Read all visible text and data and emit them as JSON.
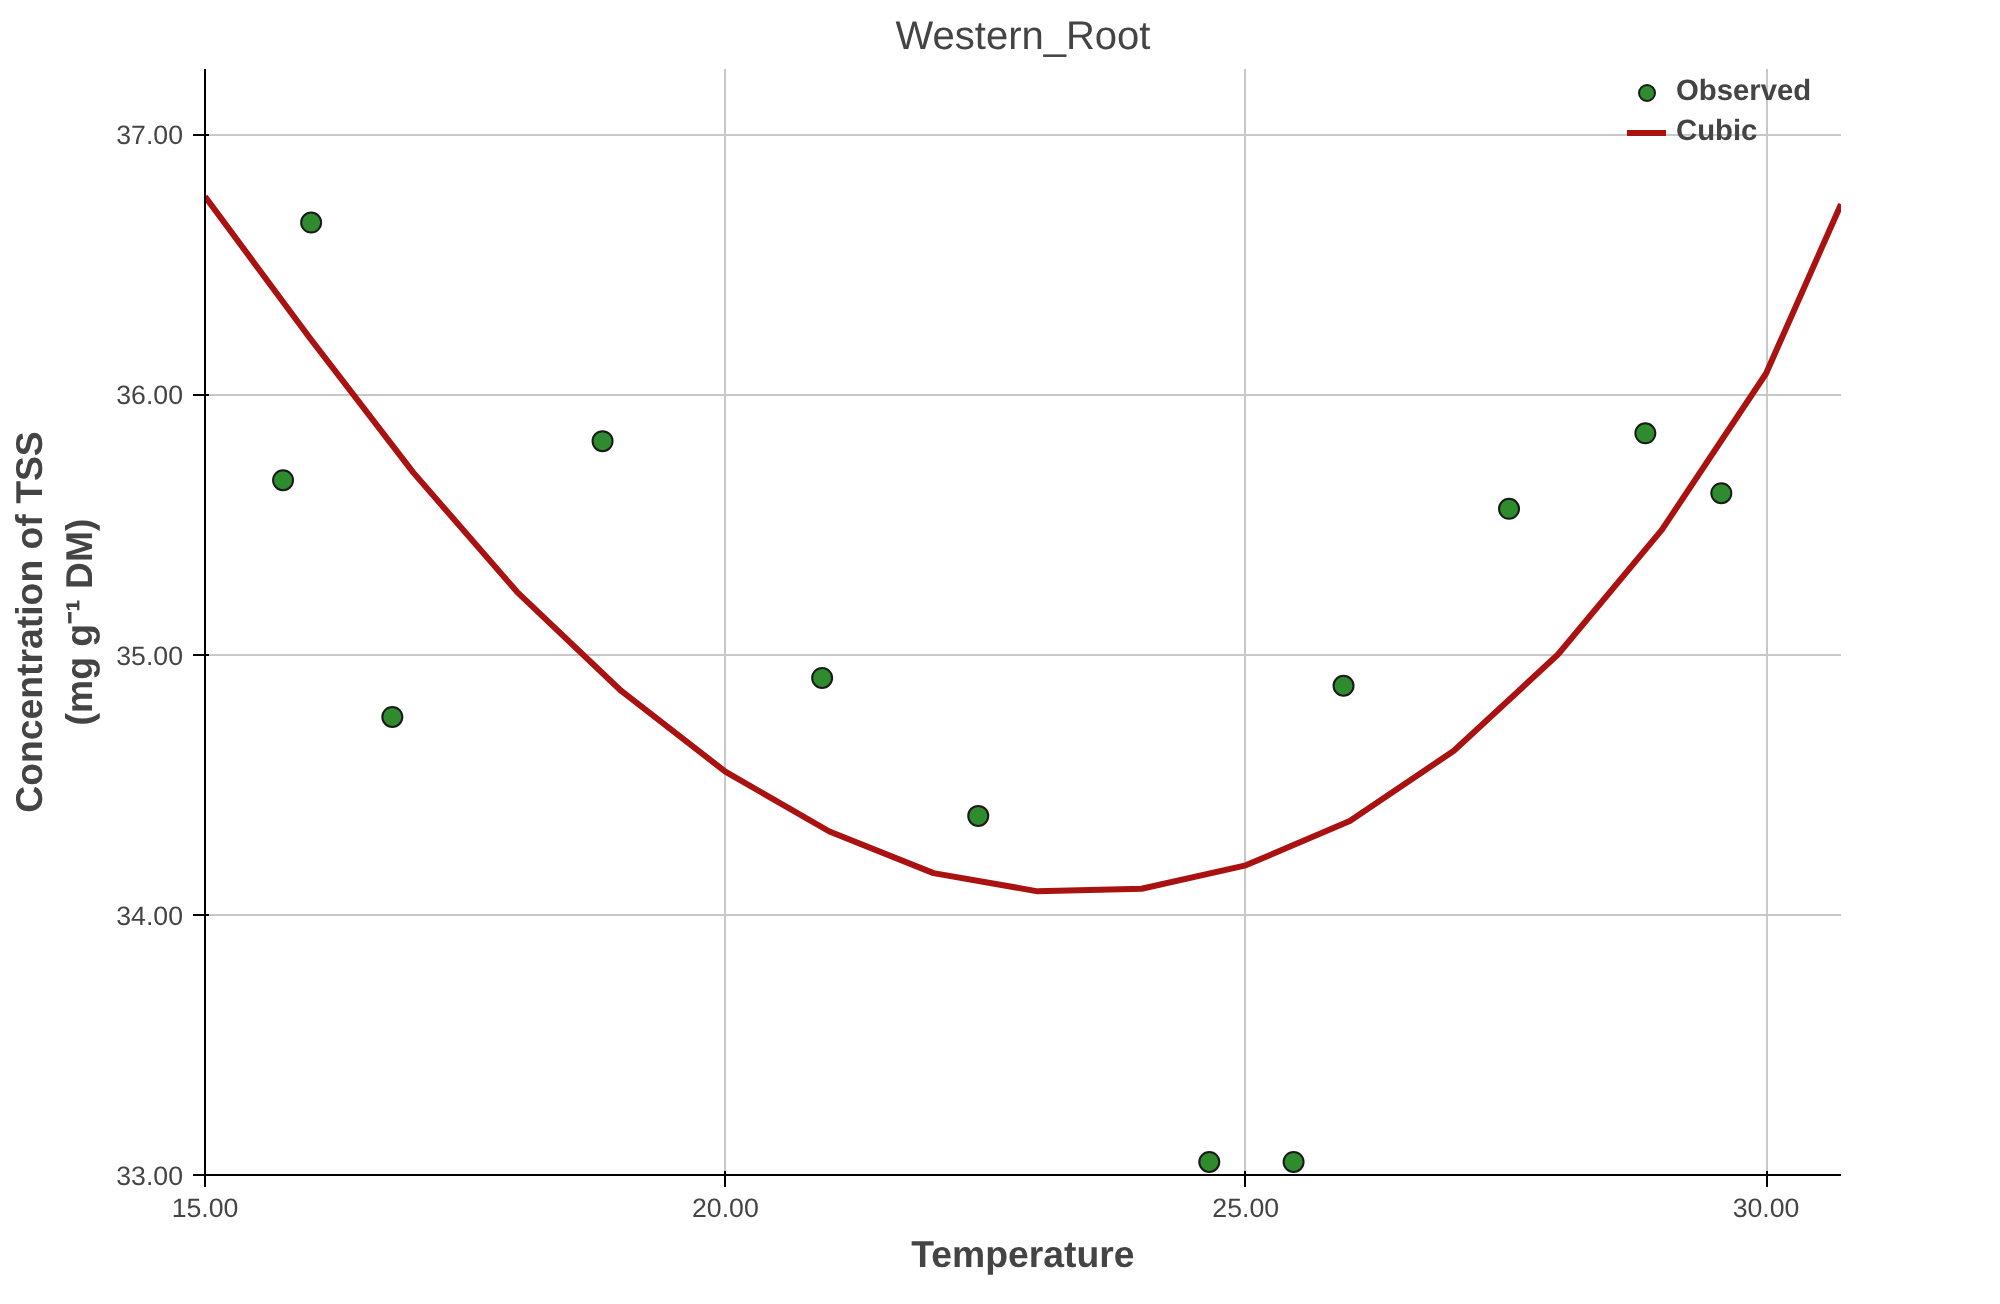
{
  "chart_data": {
    "type": "scatter",
    "title": "Western_Root",
    "xlabel": "Temperature",
    "ylabel": "Concentration of TSS\n(mg g⁻¹ DM)",
    "xlim": [
      15,
      30.72
    ],
    "ylim": [
      33,
      37.25
    ],
    "xticks": [
      {
        "value": 15,
        "label": "15.00"
      },
      {
        "value": 20,
        "label": "20.00"
      },
      {
        "value": 25,
        "label": "25.00"
      },
      {
        "value": 30,
        "label": "30.00"
      }
    ],
    "yticks": [
      {
        "value": 33,
        "label": "33.00"
      },
      {
        "value": 34,
        "label": "34.00"
      },
      {
        "value": 35,
        "label": "35.00"
      },
      {
        "value": 36,
        "label": "36.00"
      },
      {
        "value": 37,
        "label": "37.00"
      }
    ],
    "grid": true,
    "legend": "top right",
    "series": [
      {
        "name": "Observed",
        "marker": "circle",
        "color": "#2e8b2e",
        "x": [
          15.75,
          16.02,
          16.8,
          18.82,
          20.93,
          22.43,
          24.65,
          25.46,
          25.94,
          27.53,
          28.84,
          29.57
        ],
        "values": [
          35.67,
          36.66,
          34.76,
          35.82,
          34.91,
          34.38,
          33.05,
          33.05,
          34.88,
          35.56,
          35.85,
          35.62
        ]
      },
      {
        "name": "Cubic",
        "type": "line",
        "color": "#aa1111",
        "line_style": "solid",
        "x": [
          15,
          16,
          17,
          18,
          19,
          20,
          21,
          22,
          23,
          24,
          25,
          26,
          27,
          28,
          29,
          30,
          30.72
        ],
        "values": [
          36.76,
          36.22,
          35.7,
          35.24,
          34.86,
          34.55,
          34.32,
          34.16,
          34.09,
          34.1,
          34.19,
          34.36,
          34.63,
          35.0,
          35.48,
          36.08,
          36.73
        ]
      }
    ]
  }
}
